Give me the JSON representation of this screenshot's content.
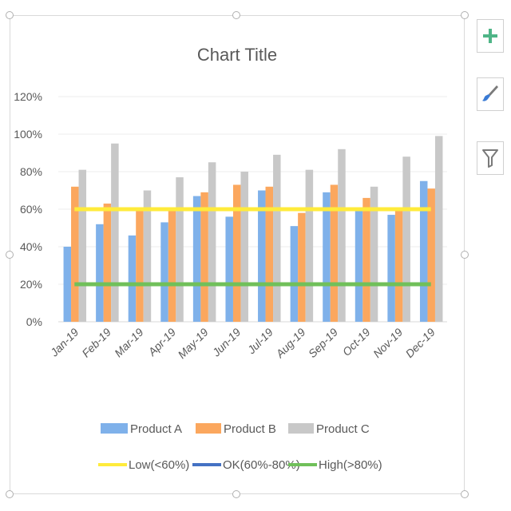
{
  "chart_data": {
    "type": "bar",
    "title": "Chart Title",
    "categories": [
      "Jan-19",
      "Feb-19",
      "Mar-19",
      "Apr-19",
      "May-19",
      "Jun-19",
      "Jul-19",
      "Aug-19",
      "Sep-19",
      "Oct-19",
      "Nov-19",
      "Dec-19"
    ],
    "ylim": [
      0,
      1.2
    ],
    "yticks": [
      "0%",
      "20%",
      "40%",
      "60%",
      "80%",
      "100%",
      "120%"
    ],
    "grid": true,
    "legend_position": "bottom",
    "series": [
      {
        "name": "Product A",
        "color": "#7fb1ea",
        "values": [
          0.4,
          0.52,
          0.46,
          0.53,
          0.67,
          0.56,
          0.7,
          0.51,
          0.69,
          0.6,
          0.57,
          0.75
        ]
      },
      {
        "name": "Product B",
        "color": "#fba75e",
        "values": [
          0.72,
          0.63,
          0.59,
          0.6,
          0.69,
          0.73,
          0.72,
          0.58,
          0.73,
          0.66,
          0.59,
          0.71
        ]
      },
      {
        "name": "Product C",
        "color": "#c8c8c8",
        "values": [
          0.81,
          0.95,
          0.7,
          0.77,
          0.85,
          0.8,
          0.89,
          0.81,
          0.92,
          0.72,
          0.88,
          0.99
        ]
      }
    ],
    "lines": [
      {
        "name": "Low(<60%)",
        "color": "#ffeb3b",
        "value": 0.6
      },
      {
        "name": "OK(60%-80%)",
        "color": "#4472c4",
        "value": null
      },
      {
        "name": "High(>80%)",
        "color": "#70c05a",
        "value": 0.2
      }
    ]
  },
  "toolbar": {
    "buttons": [
      {
        "name": "chart-elements-button",
        "icon": "plus-icon"
      },
      {
        "name": "chart-styles-button",
        "icon": "paintbrush-icon"
      },
      {
        "name": "chart-filters-button",
        "icon": "filter-icon"
      }
    ]
  }
}
